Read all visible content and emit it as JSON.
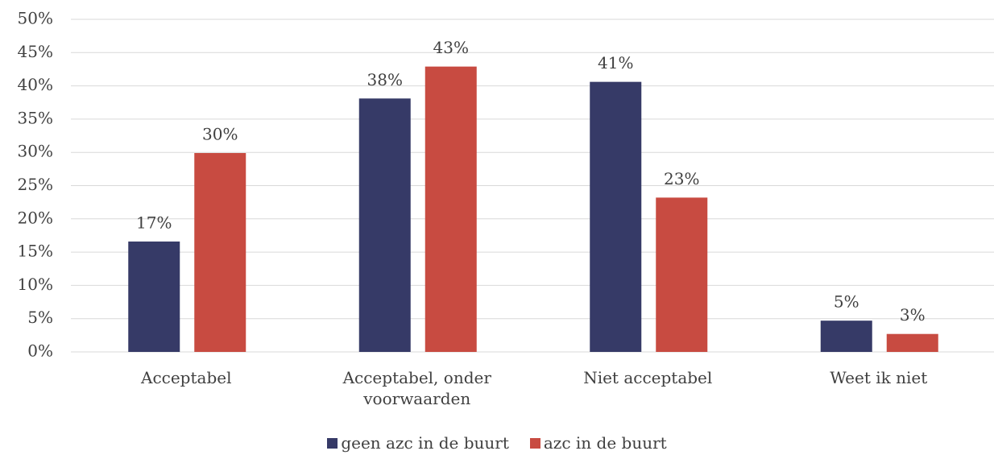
{
  "chart_data": {
    "type": "bar",
    "categories": [
      "Acceptabel",
      "Acceptabel, onder voorwaarden",
      "Niet acceptabel",
      "Weet ik niet"
    ],
    "series": [
      {
        "name": "geen azc in de buurt",
        "color": "#363a67",
        "values": [
          16.6,
          38.1,
          40.6,
          4.7
        ],
        "value_labels": [
          "17%",
          "38%",
          "41%",
          "5%"
        ]
      },
      {
        "name": "azc in de buurt",
        "color": "#c84b41",
        "values": [
          29.9,
          42.9,
          23.2,
          2.7
        ],
        "value_labels": [
          "30%",
          "43%",
          "23%",
          "3%"
        ]
      }
    ],
    "ylim": [
      0,
      50
    ],
    "yticks": [
      {
        "value": 0,
        "label": "0%"
      },
      {
        "value": 5,
        "label": "5%"
      },
      {
        "value": 10,
        "label": "10%"
      },
      {
        "value": 15,
        "label": "15%"
      },
      {
        "value": 20,
        "label": "20%"
      },
      {
        "value": 25,
        "label": "25%"
      },
      {
        "value": 30,
        "label": "30%"
      },
      {
        "value": 35,
        "label": "35%"
      },
      {
        "value": 40,
        "label": "40%"
      },
      {
        "value": 45,
        "label": "45%"
      },
      {
        "value": 50,
        "label": "50%"
      }
    ],
    "grid": true,
    "legend": "bottom"
  }
}
